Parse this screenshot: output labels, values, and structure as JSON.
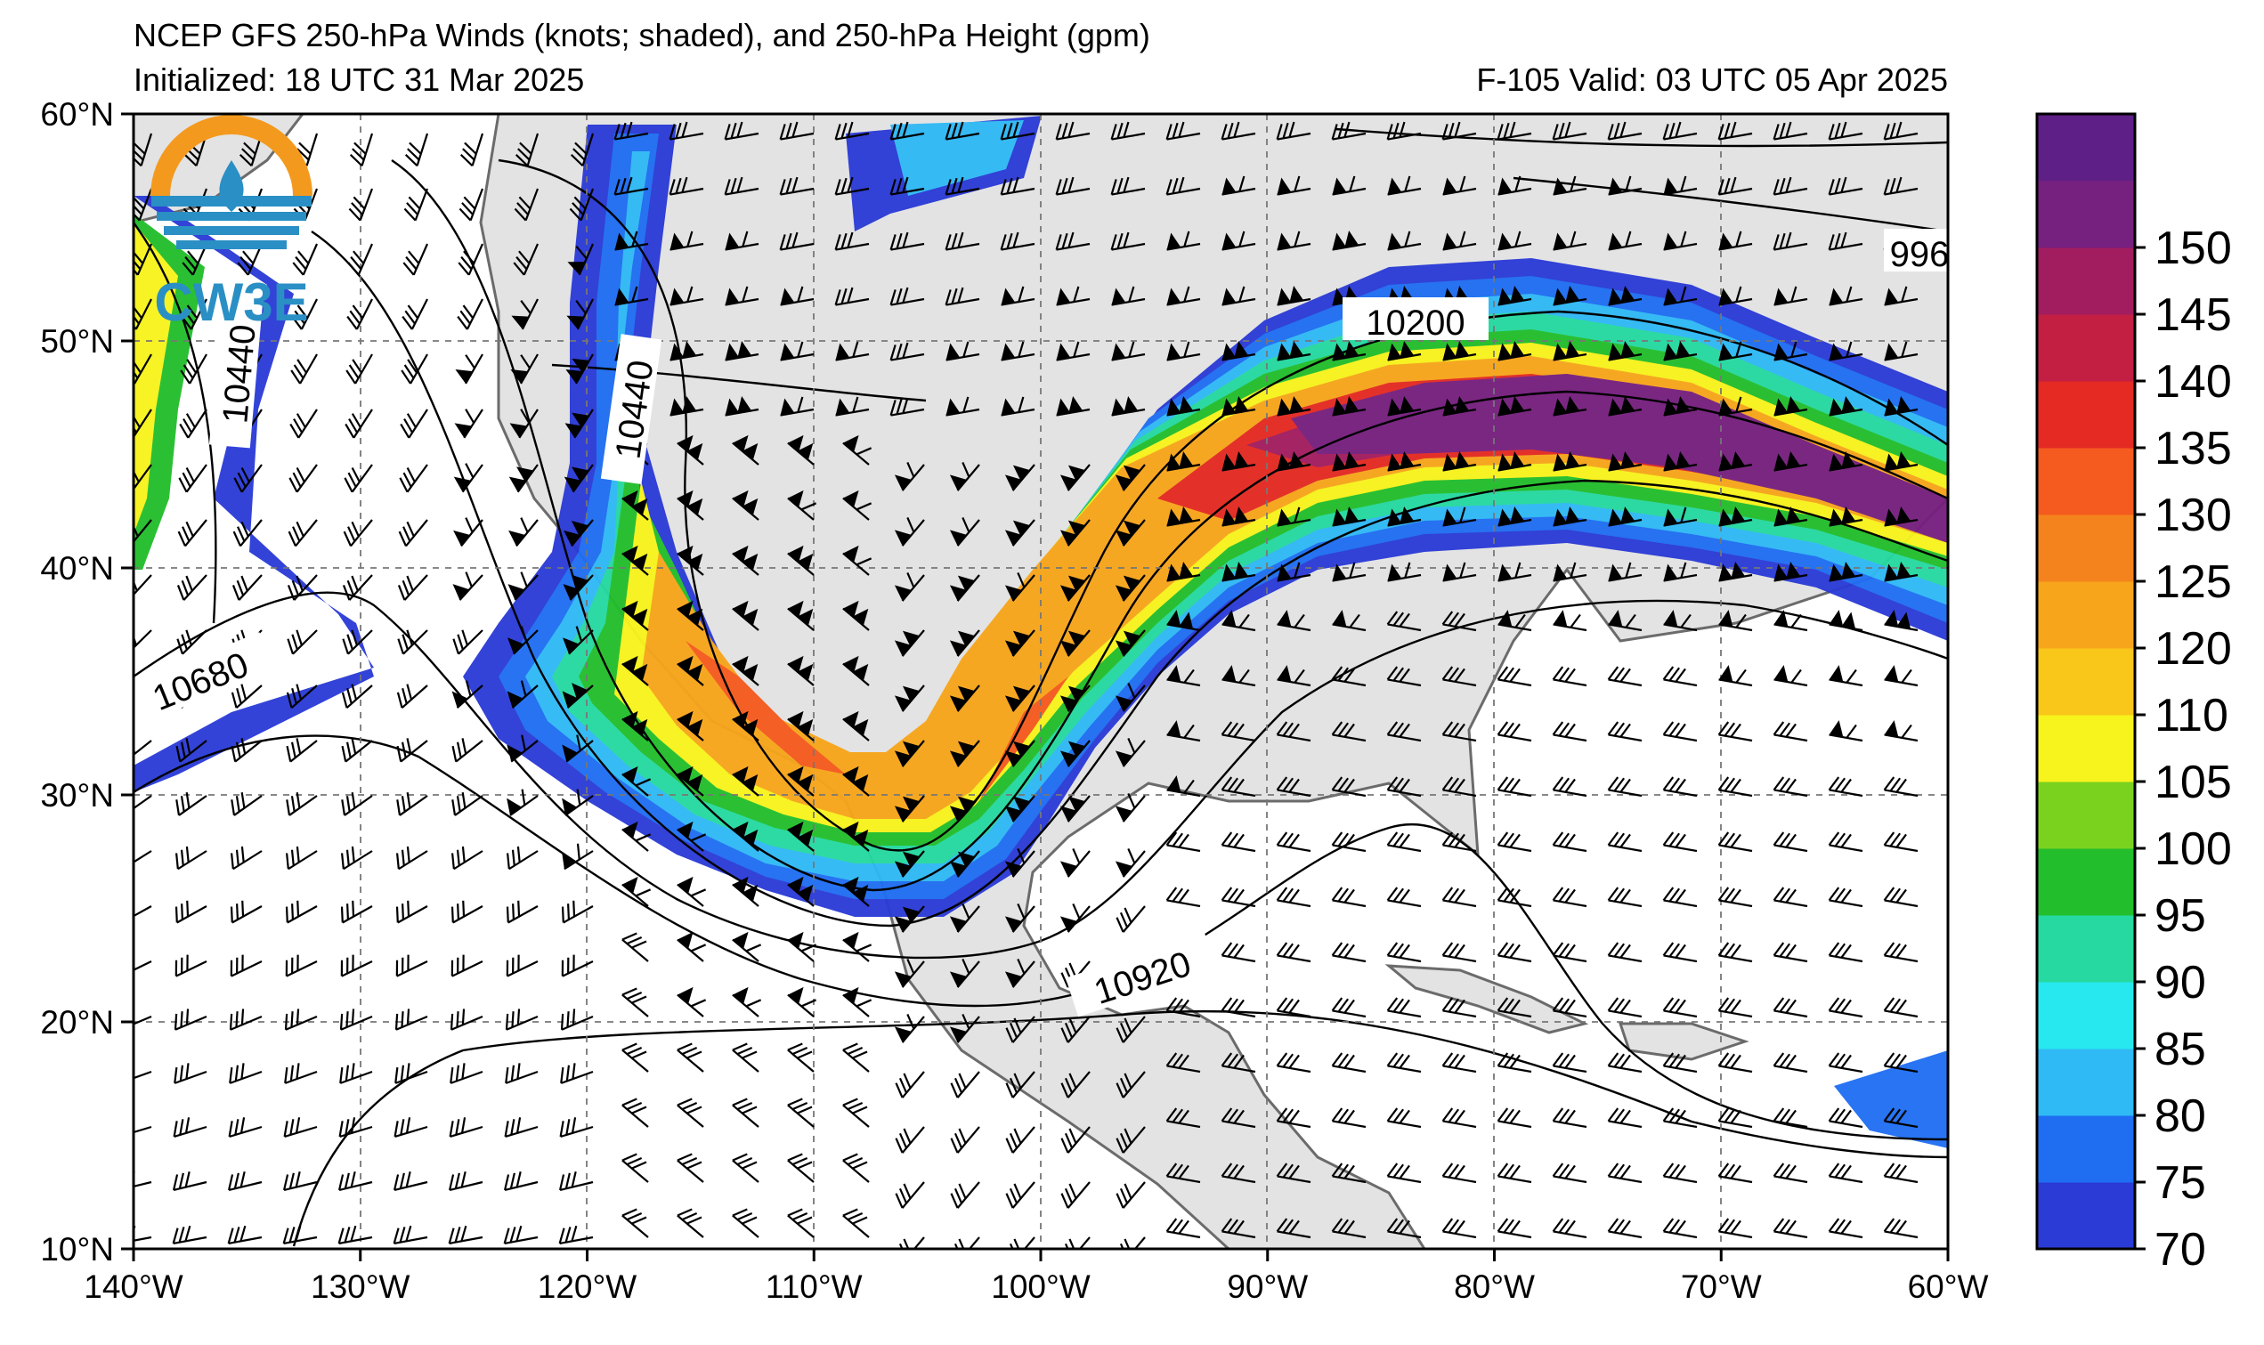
{
  "title": {
    "line1": "NCEP GFS 250-hPa Winds (knots; shaded), and 250-hPa Height (gpm)",
    "init": "Initialized: 18 UTC 31 Mar 2025",
    "valid": "F-105  Valid: 03 UTC 05 Apr 2025"
  },
  "logo": {
    "text": "CW3E",
    "colors": {
      "ring": "#f39a1e",
      "body": "#2a8fc4"
    }
  },
  "axes": {
    "lon_ticks": [
      "140°W",
      "130°W",
      "120°W",
      "110°W",
      "100°W",
      "90°W",
      "80°W",
      "70°W",
      "60°W"
    ],
    "lat_ticks": [
      "60°N",
      "50°N",
      "40°N",
      "30°N",
      "20°N",
      "10°N"
    ],
    "lon_range": [
      -140,
      -60
    ],
    "lat_range": [
      10,
      60
    ],
    "grid": "dashed"
  },
  "colorbar": {
    "levels": [
      70,
      75,
      80,
      85,
      90,
      95,
      100,
      105,
      110,
      120,
      125,
      130,
      135,
      140,
      145,
      150
    ],
    "labels": [
      "70",
      "75",
      "80",
      "85",
      "90",
      "95",
      "100",
      "105",
      "110",
      "120",
      "125",
      "130",
      "135",
      "140",
      "145",
      "150"
    ],
    "colors": [
      "#2b3bd6",
      "#1f6ef2",
      "#2fb9f5",
      "#27e8ef",
      "#26d9a0",
      "#23be2c",
      "#7ad21f",
      "#f7f31c",
      "#f9c61a",
      "#f7a51b",
      "#f5831d",
      "#f55a1f",
      "#e42a23",
      "#c21f43",
      "#a21d5f",
      "#76207f"
    ],
    "top_color": "#5e1f86"
  },
  "contour_labels": [
    {
      "text": "10200"
    },
    {
      "text": "10440"
    },
    {
      "text": "10440"
    },
    {
      "text": "10680"
    },
    {
      "text": "10920"
    },
    {
      "text": "996"
    }
  ]
}
